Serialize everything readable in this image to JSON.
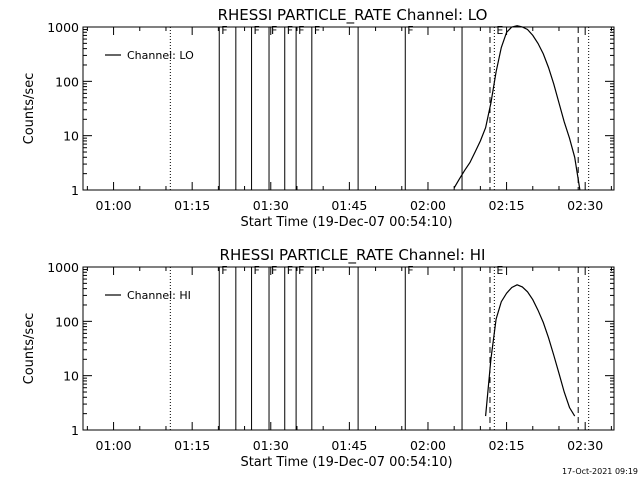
{
  "footer": {
    "timestamp": "17-Oct-2021 09:19"
  },
  "chart_data": [
    {
      "type": "line",
      "title": "RHESSI PARTICLE_RATE Channel: LO",
      "xlabel": "Start Time (19-Dec-07 00:54:10)",
      "ylabel": "Counts/sec",
      "x_unit": "minutes",
      "xlim": [
        "00:54:10",
        "02:35:30"
      ],
      "y_scale": "log",
      "ylim": [
        1,
        1000
      ],
      "xticks": [
        "01:00",
        "01:15",
        "01:30",
        "01:45",
        "02:00",
        "02:15",
        "02:30"
      ],
      "yticks": [
        "1",
        "10",
        "100",
        "1000"
      ],
      "legend": {
        "position": "top-left",
        "entries": [
          "Channel: LO"
        ]
      },
      "series": [
        {
          "name": "Channel: LO",
          "x": [
            "02:05",
            "02:06",
            "02:07",
            "02:08",
            "02:09",
            "02:10",
            "02:11",
            "02:12",
            "02:13",
            "02:14",
            "02:15",
            "02:16",
            "02:17",
            "02:18",
            "02:19",
            "02:20",
            "02:21",
            "02:22",
            "02:23",
            "02:24",
            "02:25",
            "02:26",
            "02:27",
            "02:28",
            "02:29"
          ],
          "values": [
            1.1,
            1.6,
            2.3,
            3.2,
            5,
            8,
            14,
            40,
            150,
            420,
            800,
            1000,
            1050,
            1000,
            900,
            700,
            500,
            320,
            180,
            90,
            40,
            18,
            9,
            4,
            1
          ]
        }
      ],
      "vlines": [
        {
          "time": "01:10:50",
          "style": "dotted",
          "label": ""
        },
        {
          "time": "01:20:10",
          "style": "solid",
          "label": "F"
        },
        {
          "time": "01:23:20",
          "style": "solid",
          "label": ""
        },
        {
          "time": "01:26:20",
          "style": "solid",
          "label": "F"
        },
        {
          "time": "01:29:40",
          "style": "solid",
          "label": "F"
        },
        {
          "time": "01:32:40",
          "style": "solid",
          "label": "F"
        },
        {
          "time": "01:34:50",
          "style": "solid",
          "label": "F"
        },
        {
          "time": "01:37:50",
          "style": "solid",
          "label": "F"
        },
        {
          "time": "01:46:40",
          "style": "solid",
          "label": ""
        },
        {
          "time": "01:55:40",
          "style": "solid",
          "label": "F"
        },
        {
          "time": "02:06:30",
          "style": "solid",
          "label": ""
        },
        {
          "time": "02:11:50",
          "style": "dashed",
          "label": ""
        },
        {
          "time": "02:12:40",
          "style": "dotted",
          "label": "E"
        },
        {
          "time": "02:28:40",
          "style": "dashed",
          "label": ""
        },
        {
          "time": "02:30:40",
          "style": "dotted",
          "label": ""
        }
      ]
    },
    {
      "type": "line",
      "title": "RHESSI PARTICLE_RATE Channel: HI",
      "xlabel": "Start Time (19-Dec-07 00:54:10)",
      "ylabel": "Counts/sec",
      "x_unit": "minutes",
      "xlim": [
        "00:54:10",
        "02:35:30"
      ],
      "y_scale": "log",
      "ylim": [
        1,
        1000
      ],
      "xticks": [
        "01:00",
        "01:15",
        "01:30",
        "01:45",
        "02:00",
        "02:15",
        "02:30"
      ],
      "yticks": [
        "1",
        "10",
        "100",
        "1000"
      ],
      "legend": {
        "position": "top-left",
        "entries": [
          "Channel: HI"
        ]
      },
      "series": [
        {
          "name": "Channel: HI",
          "x": [
            "02:11",
            "02:12",
            "02:13",
            "02:14",
            "02:15",
            "02:16",
            "02:17",
            "02:18",
            "02:19",
            "02:20",
            "02:21",
            "02:22",
            "02:23",
            "02:24",
            "02:25",
            "02:26",
            "02:27",
            "02:28"
          ],
          "values": [
            1.8,
            20,
            110,
            230,
            330,
            420,
            470,
            430,
            350,
            250,
            160,
            95,
            50,
            24,
            11,
            5,
            2.6,
            1.8
          ]
        }
      ],
      "vlines": [
        {
          "time": "01:10:50",
          "style": "dotted",
          "label": ""
        },
        {
          "time": "01:20:10",
          "style": "solid",
          "label": "F"
        },
        {
          "time": "01:23:20",
          "style": "solid",
          "label": ""
        },
        {
          "time": "01:26:20",
          "style": "solid",
          "label": "F"
        },
        {
          "time": "01:29:40",
          "style": "solid",
          "label": "F"
        },
        {
          "time": "01:32:40",
          "style": "solid",
          "label": "F"
        },
        {
          "time": "01:34:50",
          "style": "solid",
          "label": "F"
        },
        {
          "time": "01:37:50",
          "style": "solid",
          "label": "F"
        },
        {
          "time": "01:46:40",
          "style": "solid",
          "label": ""
        },
        {
          "time": "01:55:40",
          "style": "solid",
          "label": "F"
        },
        {
          "time": "02:06:30",
          "style": "solid",
          "label": ""
        },
        {
          "time": "02:11:50",
          "style": "dashed",
          "label": ""
        },
        {
          "time": "02:12:40",
          "style": "dotted",
          "label": "E"
        },
        {
          "time": "02:28:40",
          "style": "dashed",
          "label": ""
        },
        {
          "time": "02:30:40",
          "style": "dotted",
          "label": ""
        }
      ]
    }
  ]
}
